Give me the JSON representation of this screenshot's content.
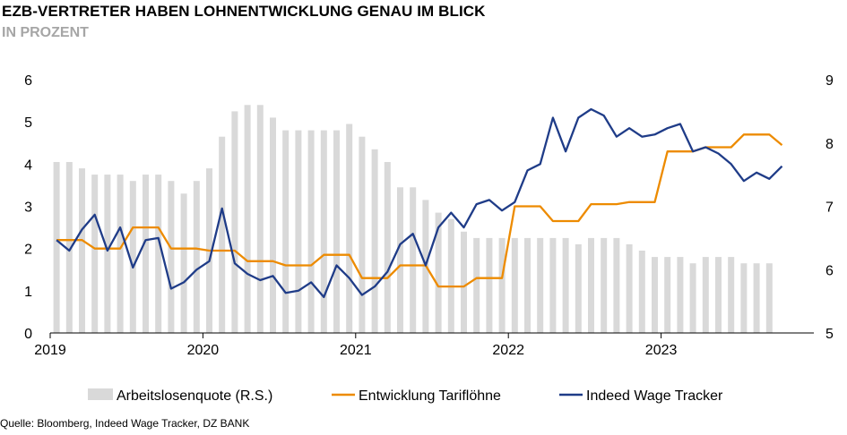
{
  "title": "EZB-VERTRETER HABEN LOHNENTWICKLUNG GENAU IM BLICK",
  "subtitle": "IN PROZENT",
  "source": "Quelle: Bloomberg, Indeed Wage Tracker, DZ BANK",
  "colors": {
    "bars": "#d9d9d9",
    "tarif": "#ed8b00",
    "indeed": "#1f3c88"
  },
  "chart_data": {
    "type": "bar+line",
    "x_start": "2019-01",
    "x_labels": [
      "2019",
      "2020",
      "2021",
      "2022",
      "2023"
    ],
    "y_left": {
      "ticks": [
        "0",
        "1",
        "2",
        "3",
        "4",
        "5",
        "6"
      ],
      "ylim": [
        0,
        6
      ]
    },
    "y_right": {
      "ticks": [
        "5",
        "6",
        "7",
        "8",
        "9"
      ],
      "ylim": [
        5,
        9
      ]
    },
    "legend": [
      "Arbeitslosenquote (R.S.)",
      "Entwicklung Tariflöhne",
      "Indeed Wage Tracker"
    ],
    "series": [
      {
        "name": "Arbeitslosenquote (R.S.)",
        "axis": "right",
        "type": "bar",
        "values": [
          7.7,
          7.7,
          7.6,
          7.5,
          7.5,
          7.5,
          7.4,
          7.5,
          7.5,
          7.4,
          7.2,
          7.4,
          7.6,
          8.1,
          8.5,
          8.6,
          8.6,
          8.4,
          8.2,
          8.2,
          8.2,
          8.2,
          8.2,
          8.3,
          8.1,
          7.9,
          7.7,
          7.3,
          7.3,
          7.1,
          6.9,
          6.8,
          6.6,
          6.5,
          6.5,
          6.5,
          6.5,
          6.5,
          6.5,
          6.5,
          6.5,
          6.4,
          6.5,
          6.5,
          6.5,
          6.4,
          6.3,
          6.2,
          6.2,
          6.2,
          6.1,
          6.2,
          6.2,
          6.2,
          6.1,
          6.1,
          6.1
        ]
      },
      {
        "name": "Entwicklung Tariflöhne",
        "axis": "left",
        "type": "line",
        "values": [
          2.2,
          2.2,
          2.2,
          2.0,
          2.0,
          2.0,
          2.5,
          2.5,
          2.5,
          2.0,
          2.0,
          2.0,
          1.95,
          1.95,
          1.95,
          1.7,
          1.7,
          1.7,
          1.6,
          1.6,
          1.6,
          1.85,
          1.85,
          1.85,
          1.3,
          1.3,
          1.3,
          1.6,
          1.6,
          1.6,
          1.1,
          1.1,
          1.1,
          1.3,
          1.3,
          1.3,
          3.0,
          3.0,
          3.0,
          2.65,
          2.65,
          2.65,
          3.05,
          3.05,
          3.05,
          3.1,
          3.1,
          3.1,
          4.3,
          4.3,
          4.3,
          4.4,
          4.4,
          4.4,
          4.7,
          4.7,
          4.7,
          4.45
        ]
      },
      {
        "name": "Indeed Wage Tracker",
        "axis": "left",
        "type": "line",
        "values": [
          2.2,
          1.95,
          2.45,
          2.8,
          1.95,
          2.5,
          1.55,
          2.2,
          2.25,
          1.05,
          1.2,
          1.5,
          1.7,
          2.95,
          1.65,
          1.4,
          1.25,
          1.35,
          0.95,
          1.0,
          1.2,
          0.85,
          1.6,
          1.3,
          0.9,
          1.1,
          1.45,
          2.1,
          2.35,
          1.6,
          2.5,
          2.85,
          2.5,
          3.05,
          3.15,
          2.9,
          3.1,
          3.85,
          4.0,
          5.1,
          4.3,
          5.1,
          5.3,
          5.15,
          4.65,
          4.85,
          4.65,
          4.7,
          4.85,
          4.95,
          4.3,
          4.4,
          4.25,
          4.0,
          3.6,
          3.8,
          3.65,
          3.95
        ]
      }
    ]
  }
}
